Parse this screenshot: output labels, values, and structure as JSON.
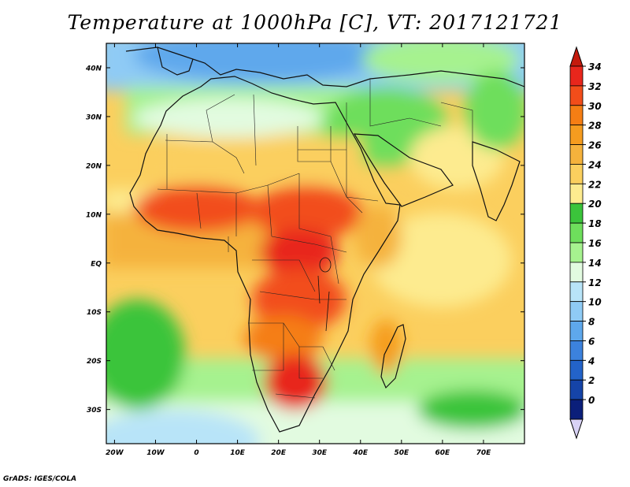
{
  "title": "Temperature at 1000hPa [C], VT: 2017121721",
  "credit": "GrADS: IGES/COLA",
  "map": {
    "lat_range": [
      -37,
      45
    ],
    "lon_range": [
      -22,
      80
    ],
    "lat_ticks": [
      {
        "value": 40,
        "label": "40N"
      },
      {
        "value": 30,
        "label": "30N"
      },
      {
        "value": 20,
        "label": "20N"
      },
      {
        "value": 10,
        "label": "10N"
      },
      {
        "value": 0,
        "label": "EQ"
      },
      {
        "value": -10,
        "label": "10S"
      },
      {
        "value": -20,
        "label": "20S"
      },
      {
        "value": -30,
        "label": "30S"
      }
    ],
    "lon_ticks": [
      {
        "value": -20,
        "label": "20W"
      },
      {
        "value": -10,
        "label": "10W"
      },
      {
        "value": 0,
        "label": "0"
      },
      {
        "value": 10,
        "label": "10E"
      },
      {
        "value": 20,
        "label": "20E"
      },
      {
        "value": 30,
        "label": "30E"
      },
      {
        "value": 40,
        "label": "40E"
      },
      {
        "value": 50,
        "label": "50E"
      },
      {
        "value": 60,
        "label": "60E"
      },
      {
        "value": 70,
        "label": "70E"
      }
    ]
  },
  "colorbar": {
    "levels": [
      "34",
      "32",
      "30",
      "28",
      "26",
      "24",
      "22",
      "20",
      "18",
      "16",
      "14",
      "12",
      "10",
      "8",
      "6",
      "4",
      "2",
      "0"
    ],
    "colors": [
      "#e8261c",
      "#f24d1a",
      "#f57e14",
      "#f59c1f",
      "#f5b23c",
      "#fbcf5e",
      "#fdeb8f",
      "#3bc43b",
      "#6ede5c",
      "#a6f28f",
      "#e2fbe0",
      "#b8e4f8",
      "#8fcbf5",
      "#5ea8ec",
      "#3c82dd",
      "#2363c9",
      "#1544a8",
      "#0b1f7a"
    ],
    "top_color": "#c41a0d",
    "bottom_color": "#d8d2f5"
  }
}
